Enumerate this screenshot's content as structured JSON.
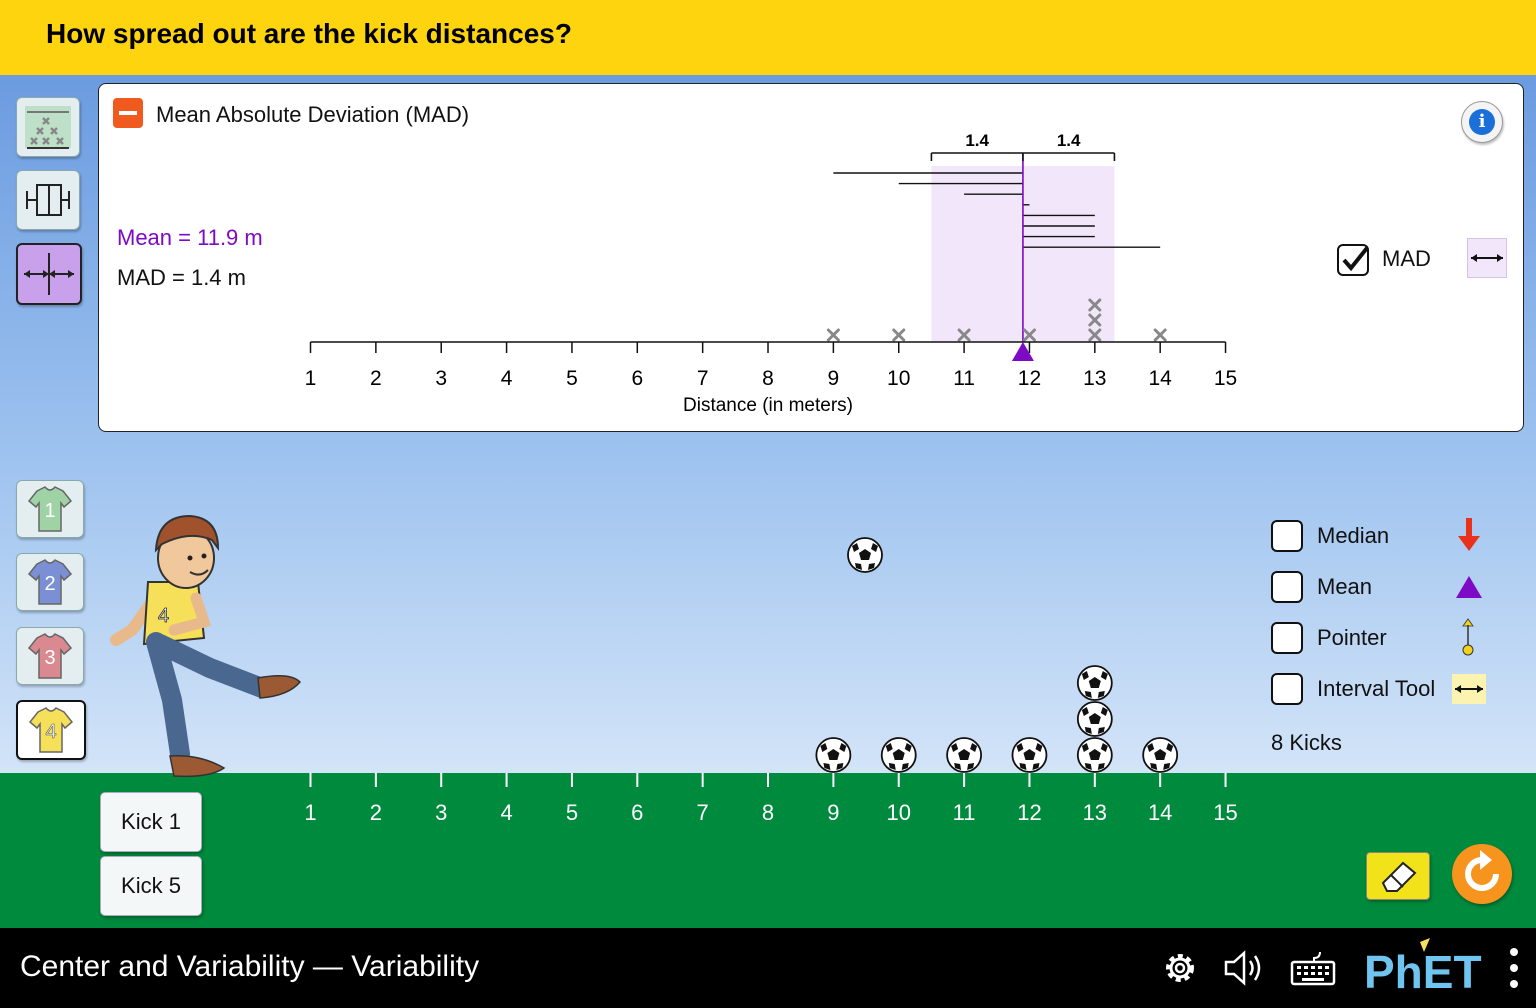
{
  "header": {
    "question": "How spread out are the kick distances?"
  },
  "mad_panel": {
    "title": "Mean Absolute Deviation (MAD)",
    "mean_label": "Mean = 11.9 m",
    "mad_label": "MAD = 1.4 m",
    "mad_left_label": "1.4",
    "mad_right_label": "1.4",
    "mad_checkbox_label": "MAD",
    "mad_checked": true,
    "axis_label": "Distance (in meters)",
    "mean_value": 11.9,
    "mad_value": 1.4,
    "data_points": [
      9,
      10,
      11,
      12,
      13,
      13,
      13,
      14
    ]
  },
  "field": {
    "ticks": [
      "1",
      "2",
      "3",
      "4",
      "5",
      "6",
      "7",
      "8",
      "9",
      "10",
      "11",
      "12",
      "13",
      "14",
      "15"
    ],
    "ball_distances": [
      9,
      10,
      11,
      12,
      13,
      13,
      13,
      14
    ],
    "kicks_count": "8 Kicks"
  },
  "options": [
    {
      "label": "Median",
      "checked": false,
      "icon": "median-arrow-icon"
    },
    {
      "label": "Mean",
      "checked": false,
      "icon": "mean-triangle-icon"
    },
    {
      "label": "Pointer",
      "checked": false,
      "icon": "pointer-icon"
    },
    {
      "label": "Interval Tool",
      "checked": false,
      "icon": "interval-tool-icon"
    }
  ],
  "players": [
    "1",
    "2",
    "3",
    "4"
  ],
  "selected_player": "4",
  "kick_buttons": {
    "kick1": "Kick 1",
    "kick5": "Kick 5"
  },
  "navbar": {
    "sim_title": "Center and Variability — Variability"
  },
  "colors": {
    "header": "#fed40e",
    "grass": "#008a3d",
    "mean": "#7d0ac4",
    "mad_fill": "#f2e6fb",
    "median": "#e8321c"
  }
}
